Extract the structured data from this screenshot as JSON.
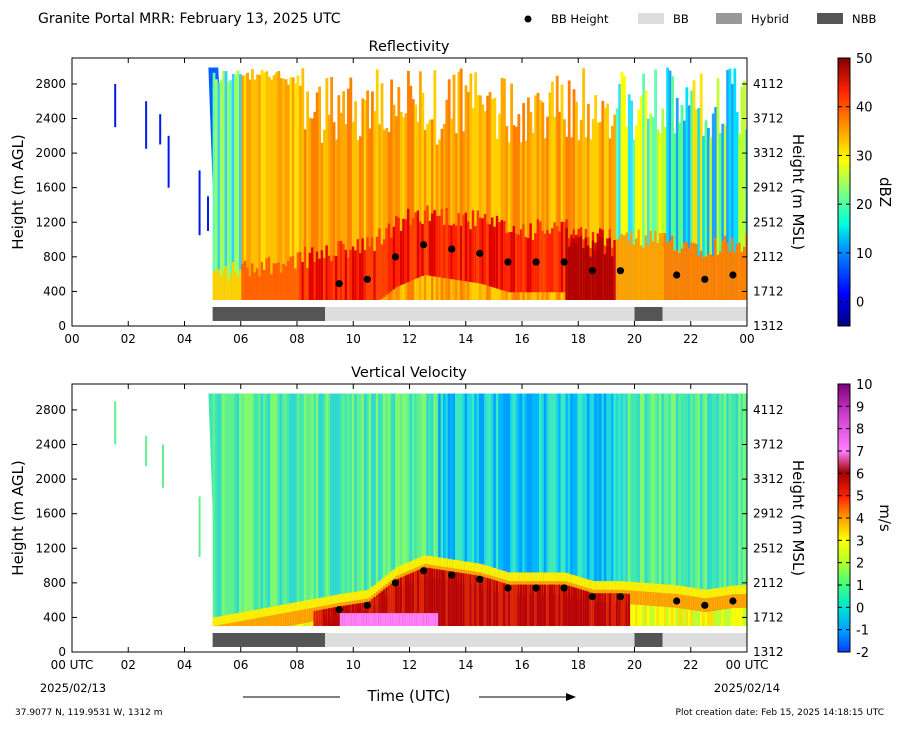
{
  "header": {
    "title": "Granite Portal MRR:  February 13, 2025 UTC",
    "legend": [
      {
        "label": "BB Height",
        "kind": "dot",
        "color": "#000000"
      },
      {
        "label": "BB",
        "kind": "swatch",
        "color": "#dddddd"
      },
      {
        "label": "Hybrid",
        "kind": "swatch",
        "color": "#999999"
      },
      {
        "label": "NBB",
        "kind": "swatch",
        "color": "#555555"
      }
    ]
  },
  "footer": {
    "coords": "37.9077 N, 119.9531 W, 1312 m",
    "creation": "Plot creation date: Feb 15, 2025 14:18:15 UTC",
    "xlabel": "Time (UTC)",
    "start_date": "2025/02/13",
    "end_date": "2025/02/14"
  },
  "chart_data": [
    {
      "type": "heatmap",
      "title": "Reflectivity",
      "ylabel_left": "Height (m AGL)",
      "ylabel_right": "Height (m MSL)",
      "xticks": [
        "00",
        "02",
        "04",
        "06",
        "08",
        "10",
        "12",
        "14",
        "16",
        "18",
        "20",
        "22",
        "00"
      ],
      "xlim": [
        0,
        24
      ],
      "yticks_agl": [
        0,
        400,
        800,
        1200,
        1600,
        2000,
        2400,
        2800
      ],
      "yticks_msl": [
        1312,
        1712,
        2112,
        2512,
        2912,
        3312,
        3712,
        4112
      ],
      "ylim": [
        0,
        3100
      ],
      "colorbar": {
        "label": "dBZ",
        "min": -5,
        "max": 50,
        "ticks": [
          0,
          10,
          20,
          30,
          40,
          50
        ]
      },
      "bb_height": {
        "hours": [
          9.5,
          10.5,
          11.5,
          12.5,
          13.5,
          14.5,
          15.5,
          16.5,
          17.5,
          18.5,
          19.5,
          21.5,
          22.5,
          23.5
        ],
        "height_m_agl": [
          490,
          540,
          800,
          940,
          890,
          840,
          740,
          740,
          740,
          640,
          640,
          590,
          540,
          590
        ]
      },
      "bb_type": [
        {
          "start_hour": 5,
          "end_hour": 9,
          "type": "NBB"
        },
        {
          "start_hour": 9,
          "end_hour": 20,
          "type": "BB"
        },
        {
          "start_hour": 20,
          "end_hour": 21,
          "type": "NBB"
        },
        {
          "start_hour": 21,
          "end_hour": 24,
          "type": "BB"
        }
      ]
    },
    {
      "type": "heatmap",
      "title": "Vertical Velocity",
      "ylabel_left": "Height (m AGL)",
      "ylabel_right": "Height (m MSL)",
      "xticks": [
        "00 UTC",
        "02",
        "04",
        "06",
        "08",
        "10",
        "12",
        "14",
        "16",
        "18",
        "20",
        "22",
        "00 UTC"
      ],
      "xlim": [
        0,
        24
      ],
      "yticks_agl": [
        0,
        400,
        800,
        1200,
        1600,
        2000,
        2400,
        2800
      ],
      "yticks_msl": [
        1312,
        1712,
        2112,
        2512,
        2912,
        3312,
        3712,
        4112
      ],
      "ylim": [
        0,
        3100
      ],
      "colorbar": {
        "label": "m/s",
        "min": -2,
        "max": 10,
        "ticks": [
          -2,
          -1,
          0,
          1,
          2,
          3,
          4,
          5,
          6,
          7,
          8,
          9,
          10
        ]
      },
      "bb_height": {
        "hours": [
          9.5,
          10.5,
          11.5,
          12.5,
          13.5,
          14.5,
          15.5,
          16.5,
          17.5,
          18.5,
          19.5,
          21.5,
          22.5,
          23.5
        ],
        "height_m_agl": [
          490,
          540,
          800,
          940,
          890,
          840,
          740,
          740,
          740,
          640,
          640,
          590,
          540,
          590
        ]
      },
      "bb_type": [
        {
          "start_hour": 5,
          "end_hour": 9,
          "type": "NBB"
        },
        {
          "start_hour": 9,
          "end_hour": 20,
          "type": "BB"
        },
        {
          "start_hour": 20,
          "end_hour": 21,
          "type": "NBB"
        },
        {
          "start_hour": 21,
          "end_hour": 24,
          "type": "BB"
        }
      ]
    }
  ]
}
